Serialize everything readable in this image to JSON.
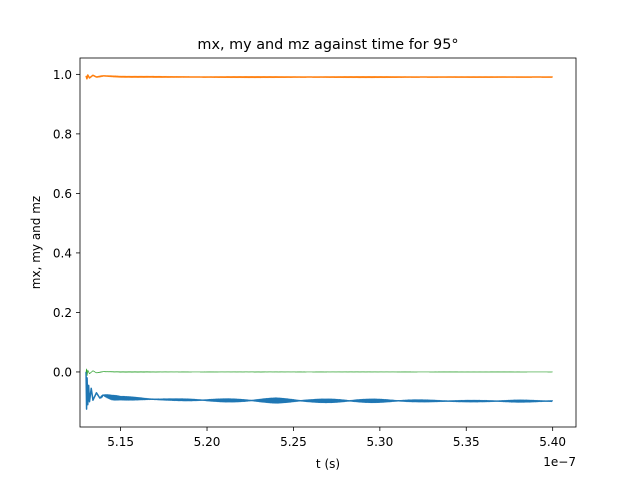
{
  "chart_data": {
    "type": "line",
    "title": "mx, my and mz against time for 95°",
    "xlabel": "t (s)",
    "ylabel": "mx, my and mz",
    "x_offset_label": "1e−7",
    "xlim": [
      5.1265,
      5.4135
    ],
    "ylim": [
      -0.185,
      1.055
    ],
    "x_ticks": [
      5.15,
      5.2,
      5.25,
      5.3,
      5.35,
      5.4
    ],
    "x_tick_labels": [
      "5.15",
      "5.20",
      "5.25",
      "5.30",
      "5.35",
      "5.40"
    ],
    "y_ticks": [
      0.0,
      0.2,
      0.4,
      0.6,
      0.8,
      1.0
    ],
    "y_tick_labels": [
      "0.0",
      "0.2",
      "0.4",
      "0.6",
      "0.8",
      "1.0"
    ],
    "series": [
      {
        "name": "mx",
        "color": "#1f77b4",
        "x": [
          5.13,
          5.1303,
          5.1306,
          5.131,
          5.1315,
          5.132,
          5.133,
          5.134,
          5.136,
          5.138,
          5.14,
          5.145,
          5.15,
          5.16,
          5.17,
          5.18,
          5.2,
          5.22,
          5.24,
          5.26,
          5.28,
          5.3,
          5.32,
          5.34,
          5.36,
          5.38,
          5.4
        ],
        "y": [
          0.0,
          -0.125,
          -0.02,
          -0.11,
          -0.045,
          -0.1,
          -0.055,
          -0.095,
          -0.07,
          -0.088,
          -0.078,
          -0.086,
          -0.088,
          -0.09,
          -0.092,
          -0.093,
          -0.095,
          -0.096,
          -0.096,
          -0.097,
          -0.097,
          -0.097,
          -0.097,
          -0.098,
          -0.098,
          -0.098,
          -0.098
        ],
        "osc_amp": [
          0.0,
          0.0,
          0.0,
          0.0,
          0.0,
          0.0,
          0.0,
          0.0,
          0.0,
          0.0,
          0.01,
          0.008,
          0.006,
          0.004,
          0.002,
          0.002,
          0.004,
          0.005,
          0.008,
          0.005,
          0.006,
          0.005,
          0.003,
          0.002,
          0.002,
          0.003,
          0.002
        ]
      },
      {
        "name": "my",
        "color": "#ff7f0e",
        "x": [
          5.13,
          5.1305,
          5.131,
          5.132,
          5.134,
          5.136,
          5.14,
          5.15,
          5.2,
          5.25,
          5.3,
          5.35,
          5.4
        ],
        "y": [
          0.995,
          0.985,
          0.998,
          0.988,
          0.997,
          0.991,
          0.995,
          0.992,
          0.991,
          0.991,
          0.991,
          0.991,
          0.991
        ],
        "osc_amp": [
          0.0,
          0.0,
          0.0,
          0.0,
          0.0,
          0.0,
          0.002,
          0.001,
          0.001,
          0.001,
          0.001,
          0.0005,
          0.0005
        ]
      },
      {
        "name": "mz",
        "color": "#2ca02c",
        "x": [
          5.13,
          5.1303,
          5.1306,
          5.131,
          5.132,
          5.134,
          5.136,
          5.14,
          5.15,
          5.2,
          5.25,
          5.3,
          5.35,
          5.4
        ],
        "y": [
          0.0,
          0.01,
          -0.012,
          0.006,
          -0.006,
          0.004,
          -0.003,
          0.001,
          0.0,
          0.0,
          0.0,
          0.0,
          0.0,
          0.0
        ],
        "osc_amp": [
          0.0,
          0.0,
          0.0,
          0.0,
          0.0,
          0.0,
          0.0,
          0.002,
          0.001,
          0.0005,
          0.0008,
          0.0005,
          0.0003,
          0.0002
        ]
      }
    ]
  }
}
